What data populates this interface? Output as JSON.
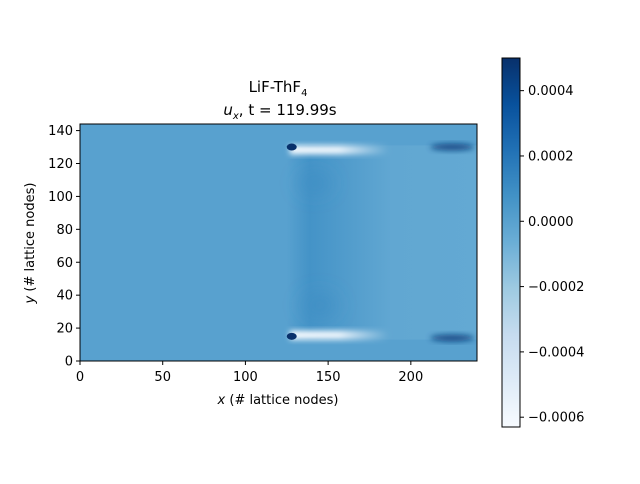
{
  "chart_data": {
    "type": "heatmap",
    "title_line1": "LiF-ThF",
    "title_line1_sub": "4",
    "title_line2_var": "u",
    "title_line2_var_sub": "x",
    "title_line2_rest": ", t = 119.99s",
    "xlabel_var": "x",
    "xlabel_rest": " (# lattice nodes)",
    "ylabel_var": "y",
    "ylabel_rest": " (# lattice nodes)",
    "xlim": [
      0,
      240
    ],
    "ylim": [
      0,
      144
    ],
    "xticks": [
      0,
      50,
      100,
      150,
      200
    ],
    "yticks": [
      0,
      20,
      40,
      60,
      80,
      100,
      120,
      140
    ],
    "colorbar": {
      "colormap": "Blues",
      "vmin": -0.00063,
      "vmax": 0.0005,
      "ticks": [
        0.0004,
        0.0002,
        0.0,
        -0.0002,
        -0.0004,
        -0.0006
      ],
      "tick_labels": [
        "0.0004",
        "0.0002",
        "0.0000",
        "−0.0002",
        "−0.0004",
        "−0.0006"
      ]
    },
    "regions": {
      "background_value": 0.0,
      "obstacle_x_range": [
        125,
        240
      ],
      "obstacle_y_range": [
        13,
        131
      ],
      "interior_value": -3e-05,
      "interior_left_value": 7e-05,
      "top_wake": {
        "x_range": [
          125,
          160
        ],
        "y": 131,
        "value": -0.00063
      },
      "bottom_wake": {
        "x_range": [
          125,
          160
        ],
        "y": 13,
        "value": -0.00063
      },
      "corner_vortices": [
        {
          "x": 128,
          "y": 130,
          "value": 0.0005
        },
        {
          "x": 128,
          "y": 15,
          "value": 0.0005
        },
        {
          "x": 225,
          "y": 130,
          "value": 0.00045
        },
        {
          "x": 225,
          "y": 14,
          "value": 0.00045
        }
      ]
    }
  }
}
